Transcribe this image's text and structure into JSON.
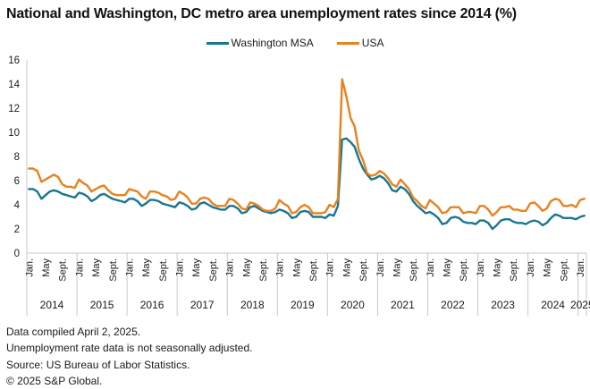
{
  "title": "National and Washington, DC metro area unemployment rates since 2014 (%)",
  "legend": [
    {
      "label": "Washington MSA"
    },
    {
      "label": "USA"
    }
  ],
  "footer": {
    "lines": [
      "Data compiled April 2, 2025.",
      "Unemployment rate data is not seasonally adjusted.",
      "Source: US Bureau of Labor Statistics.",
      "© 2025 S&P Global."
    ]
  },
  "chart_data": {
    "type": "line",
    "title": "National and Washington, DC metro area unemployment rates since 2014 (%)",
    "x_unit": "month",
    "x_start": "2014-01",
    "x_end": "2025-02",
    "years": [
      "2014",
      "2015",
      "2016",
      "2017",
      "2018",
      "2019",
      "2020",
      "2021",
      "2022",
      "2023",
      "2024",
      "2025"
    ],
    "month_tick_labels": [
      "Jan.",
      "May",
      "Sept."
    ],
    "ylim": [
      0,
      16
    ],
    "yticks": [
      0,
      2,
      4,
      6,
      8,
      10,
      12,
      14,
      16
    ],
    "grid": false,
    "legend_position": "top-center",
    "colors": {
      "axis": "#c8c8c8",
      "text": "#1a1a1a"
    },
    "series": [
      {
        "name": "Washington MSA",
        "color": "#1a7691",
        "values": [
          5.3,
          5.3,
          5.1,
          4.5,
          4.8,
          5.1,
          5.2,
          5.1,
          4.9,
          4.8,
          4.7,
          4.6,
          5.0,
          4.9,
          4.7,
          4.3,
          4.5,
          4.8,
          4.9,
          4.7,
          4.5,
          4.4,
          4.3,
          4.2,
          4.5,
          4.5,
          4.3,
          3.9,
          4.1,
          4.4,
          4.4,
          4.3,
          4.1,
          4.0,
          3.9,
          3.8,
          4.2,
          4.1,
          3.9,
          3.6,
          3.7,
          4.1,
          4.2,
          4.0,
          3.8,
          3.7,
          3.6,
          3.6,
          3.9,
          3.9,
          3.7,
          3.3,
          3.4,
          3.8,
          3.9,
          3.7,
          3.5,
          3.4,
          3.3,
          3.4,
          3.6,
          3.5,
          3.3,
          2.9,
          3.0,
          3.4,
          3.5,
          3.4,
          3.0,
          3.0,
          3.0,
          2.9,
          3.2,
          3.1,
          3.9,
          9.4,
          9.5,
          9.2,
          8.8,
          7.8,
          7.0,
          6.5,
          6.1,
          6.2,
          6.4,
          6.2,
          5.8,
          5.2,
          5.1,
          5.5,
          5.3,
          4.9,
          4.3,
          3.9,
          3.6,
          3.3,
          3.4,
          3.2,
          2.9,
          2.4,
          2.5,
          2.9,
          3.0,
          2.9,
          2.6,
          2.5,
          2.5,
          2.4,
          2.7,
          2.7,
          2.5,
          2.0,
          2.3,
          2.7,
          2.8,
          2.8,
          2.6,
          2.5,
          2.5,
          2.4,
          2.6,
          2.7,
          2.6,
          2.3,
          2.5,
          2.9,
          3.2,
          3.1,
          2.9,
          2.9,
          2.9,
          2.8,
          3.0,
          3.1
        ]
      },
      {
        "name": "USA",
        "color": "#e8821e",
        "values": [
          7.0,
          7.0,
          6.8,
          5.9,
          6.1,
          6.3,
          6.5,
          6.3,
          5.7,
          5.5,
          5.5,
          5.4,
          6.1,
          5.8,
          5.6,
          5.1,
          5.3,
          5.5,
          5.6,
          5.2,
          4.9,
          4.8,
          4.8,
          4.8,
          5.3,
          5.2,
          5.1,
          4.7,
          4.5,
          5.1,
          5.1,
          5.0,
          4.8,
          4.7,
          4.4,
          4.5,
          5.1,
          4.9,
          4.6,
          4.1,
          4.1,
          4.5,
          4.6,
          4.5,
          4.1,
          3.9,
          3.9,
          3.9,
          4.5,
          4.4,
          4.1,
          3.7,
          3.6,
          4.2,
          4.1,
          3.9,
          3.6,
          3.5,
          3.5,
          3.7,
          4.4,
          4.1,
          3.9,
          3.3,
          3.4,
          3.8,
          4.0,
          3.8,
          3.3,
          3.3,
          3.3,
          3.4,
          4.0,
          3.8,
          4.5,
          14.4,
          13.0,
          11.2,
          10.5,
          8.5,
          7.7,
          6.6,
          6.4,
          6.5,
          6.8,
          6.6,
          6.2,
          5.7,
          5.5,
          6.1,
          5.7,
          5.3,
          4.6,
          4.3,
          3.9,
          3.7,
          4.4,
          4.1,
          3.8,
          3.3,
          3.4,
          3.8,
          3.8,
          3.8,
          3.3,
          3.4,
          3.4,
          3.3,
          3.9,
          3.9,
          3.6,
          3.1,
          3.4,
          3.8,
          3.8,
          3.9,
          3.6,
          3.6,
          3.5,
          3.5,
          4.1,
          4.2,
          3.9,
          3.5,
          3.7,
          4.3,
          4.5,
          4.4,
          3.9,
          3.9,
          4.0,
          3.8,
          4.4,
          4.5
        ]
      }
    ]
  }
}
